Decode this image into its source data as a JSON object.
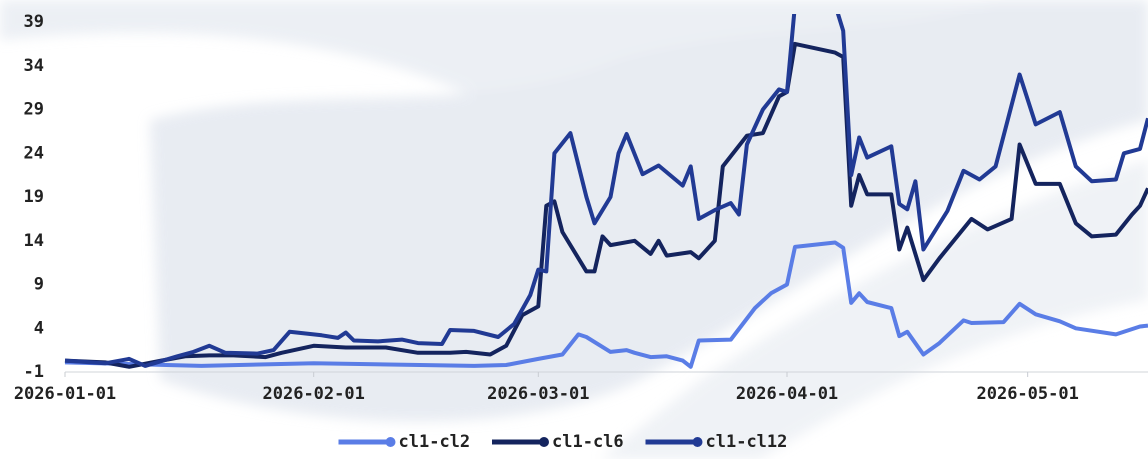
{
  "chart_data": {
    "type": "line",
    "xlim": [
      "2026-01-01",
      "2026-05-16"
    ],
    "xticks": [
      "2026-01-01",
      "2026-02-01",
      "2026-03-01",
      "2026-04-01",
      "2026-05-01"
    ],
    "ylim": [
      -1,
      39
    ],
    "yticks": [
      -1,
      4,
      9,
      14,
      19,
      24,
      29,
      34,
      39
    ],
    "legend": "bottom",
    "series": [
      {
        "name": "cl1-cl2",
        "color": "#5a7de6",
        "x": [
          "2026-01-01",
          "2026-01-18",
          "2026-02-01",
          "2026-02-21",
          "2026-02-25",
          "2026-03-01",
          "2026-03-04",
          "2026-03-06",
          "2026-03-07",
          "2026-03-10",
          "2026-03-12",
          "2026-03-13",
          "2026-03-15",
          "2026-03-17",
          "2026-03-19",
          "2026-03-20",
          "2026-03-21",
          "2026-03-25",
          "2026-03-28",
          "2026-03-30",
          "2026-04-01",
          "2026-04-02",
          "2026-04-07",
          "2026-04-08",
          "2026-04-09",
          "2026-04-10",
          "2026-04-11",
          "2026-04-14",
          "2026-04-15",
          "2026-04-16",
          "2026-04-18",
          "2026-04-20",
          "2026-04-23",
          "2026-04-24",
          "2026-04-28",
          "2026-04-30",
          "2026-05-02",
          "2026-05-05",
          "2026-05-07",
          "2026-05-12",
          "2026-05-15",
          "2026-05-16"
        ],
        "values": [
          0.1,
          -0.3,
          0,
          -0.3,
          -0.2,
          0.5,
          1,
          3.3,
          3,
          1.3,
          1.5,
          1.2,
          0.7,
          0.8,
          0.3,
          -0.4,
          2.6,
          2.7,
          6.3,
          8,
          9,
          13.3,
          13.8,
          13.2,
          6.9,
          8,
          7,
          6.3,
          3.1,
          3.6,
          1,
          2.3,
          4.9,
          4.6,
          4.7,
          6.8,
          5.6,
          4.8,
          4,
          3.3,
          4.2,
          4.3
        ]
      },
      {
        "name": "cl1-cl6",
        "color": "#14245e",
        "x": [
          "2026-01-01",
          "2026-01-06",
          "2026-01-09",
          "2026-01-13",
          "2026-01-16",
          "2026-01-19",
          "2026-01-22",
          "2026-01-26",
          "2026-01-28",
          "2026-02-01",
          "2026-02-05",
          "2026-02-10",
          "2026-02-14",
          "2026-02-18",
          "2026-02-20",
          "2026-02-23",
          "2026-02-25",
          "2026-02-27",
          "2026-03-01",
          "2026-03-02",
          "2026-03-03",
          "2026-03-04",
          "2026-03-07",
          "2026-03-08",
          "2026-03-09",
          "2026-03-10",
          "2026-03-13",
          "2026-03-15",
          "2026-03-16",
          "2026-03-17",
          "2026-03-20",
          "2026-03-21",
          "2026-03-23",
          "2026-03-24",
          "2026-03-27",
          "2026-03-29",
          "2026-03-31",
          "2026-04-01",
          "2026-04-02",
          "2026-04-07",
          "2026-04-08",
          "2026-04-09",
          "2026-04-10",
          "2026-04-11",
          "2026-04-14",
          "2026-04-15",
          "2026-04-16",
          "2026-04-18",
          "2026-04-20",
          "2026-04-24",
          "2026-04-26",
          "2026-04-29",
          "2026-04-30",
          "2026-05-02",
          "2026-05-05",
          "2026-05-07",
          "2026-05-09",
          "2026-05-12",
          "2026-05-14",
          "2026-05-15",
          "2026-05-16"
        ],
        "values": [
          0.3,
          0.1,
          -0.4,
          0.3,
          0.8,
          0.9,
          0.9,
          0.7,
          1.2,
          2.0,
          1.8,
          1.8,
          1.2,
          1.2,
          1.3,
          1.0,
          2.0,
          5.5,
          6.5,
          18,
          18.5,
          15,
          10.5,
          10.5,
          14.5,
          13.5,
          14,
          12.5,
          14,
          12.3,
          12.7,
          12,
          14,
          22.5,
          26,
          26.3,
          30.5,
          31,
          36.5,
          35.5,
          35,
          18,
          21.5,
          19.3,
          19.3,
          13,
          15.5,
          9.5,
          12,
          16.5,
          15.3,
          16.5,
          25,
          20.5,
          20.5,
          16,
          14.5,
          14.7,
          17,
          18,
          20
        ]
      },
      {
        "name": "cl1-cl12",
        "color": "#213a94",
        "x": [
          "2026-01-01",
          "2026-01-06",
          "2026-01-09",
          "2026-01-11",
          "2026-01-15",
          "2026-01-17",
          "2026-01-19",
          "2026-01-21",
          "2026-01-25",
          "2026-01-27",
          "2026-01-29",
          "2026-02-02",
          "2026-02-04",
          "2026-02-05",
          "2026-02-06",
          "2026-02-09",
          "2026-02-12",
          "2026-02-14",
          "2026-02-17",
          "2026-02-18",
          "2026-02-21",
          "2026-02-24",
          "2026-02-26",
          "2026-02-28",
          "2026-03-01",
          "2026-03-02",
          "2026-03-03",
          "2026-03-05",
          "2026-03-07",
          "2026-03-08",
          "2026-03-10",
          "2026-03-11",
          "2026-03-12",
          "2026-03-14",
          "2026-03-16",
          "2026-03-19",
          "2026-03-20",
          "2026-03-21",
          "2026-03-23",
          "2026-03-25",
          "2026-03-26",
          "2026-03-27",
          "2026-03-29",
          "2026-03-31",
          "2026-04-01",
          "2026-04-02",
          "2026-04-07",
          "2026-04-08",
          "2026-04-09",
          "2026-04-10",
          "2026-04-11",
          "2026-04-14",
          "2026-04-15",
          "2026-04-16",
          "2026-04-17",
          "2026-04-18",
          "2026-04-21",
          "2026-04-23",
          "2026-04-25",
          "2026-04-27",
          "2026-04-30",
          "2026-05-02",
          "2026-05-05",
          "2026-05-07",
          "2026-05-09",
          "2026-05-12",
          "2026-05-13",
          "2026-05-15",
          "2026-05-16"
        ],
        "values": [
          0.3,
          0,
          0.5,
          -0.3,
          0.8,
          1.3,
          2.0,
          1.2,
          1.1,
          1.5,
          3.6,
          3.2,
          2.9,
          3.5,
          2.6,
          2.5,
          2.7,
          2.3,
          2.2,
          3.8,
          3.7,
          3,
          4.5,
          7.8,
          10.7,
          10.5,
          24,
          26.3,
          19,
          16,
          19,
          24,
          26.2,
          21.6,
          22.6,
          20.3,
          22.5,
          16.5,
          17.5,
          18.3,
          17,
          25,
          29,
          31.3,
          31,
          41,
          41,
          38,
          21.5,
          25.8,
          23.5,
          24.8,
          18.2,
          17.6,
          20.8,
          13,
          17.4,
          22,
          21,
          22.5,
          33,
          27.3,
          28.7,
          22.5,
          20.8,
          21,
          24,
          24.5,
          28
        ]
      }
    ]
  }
}
